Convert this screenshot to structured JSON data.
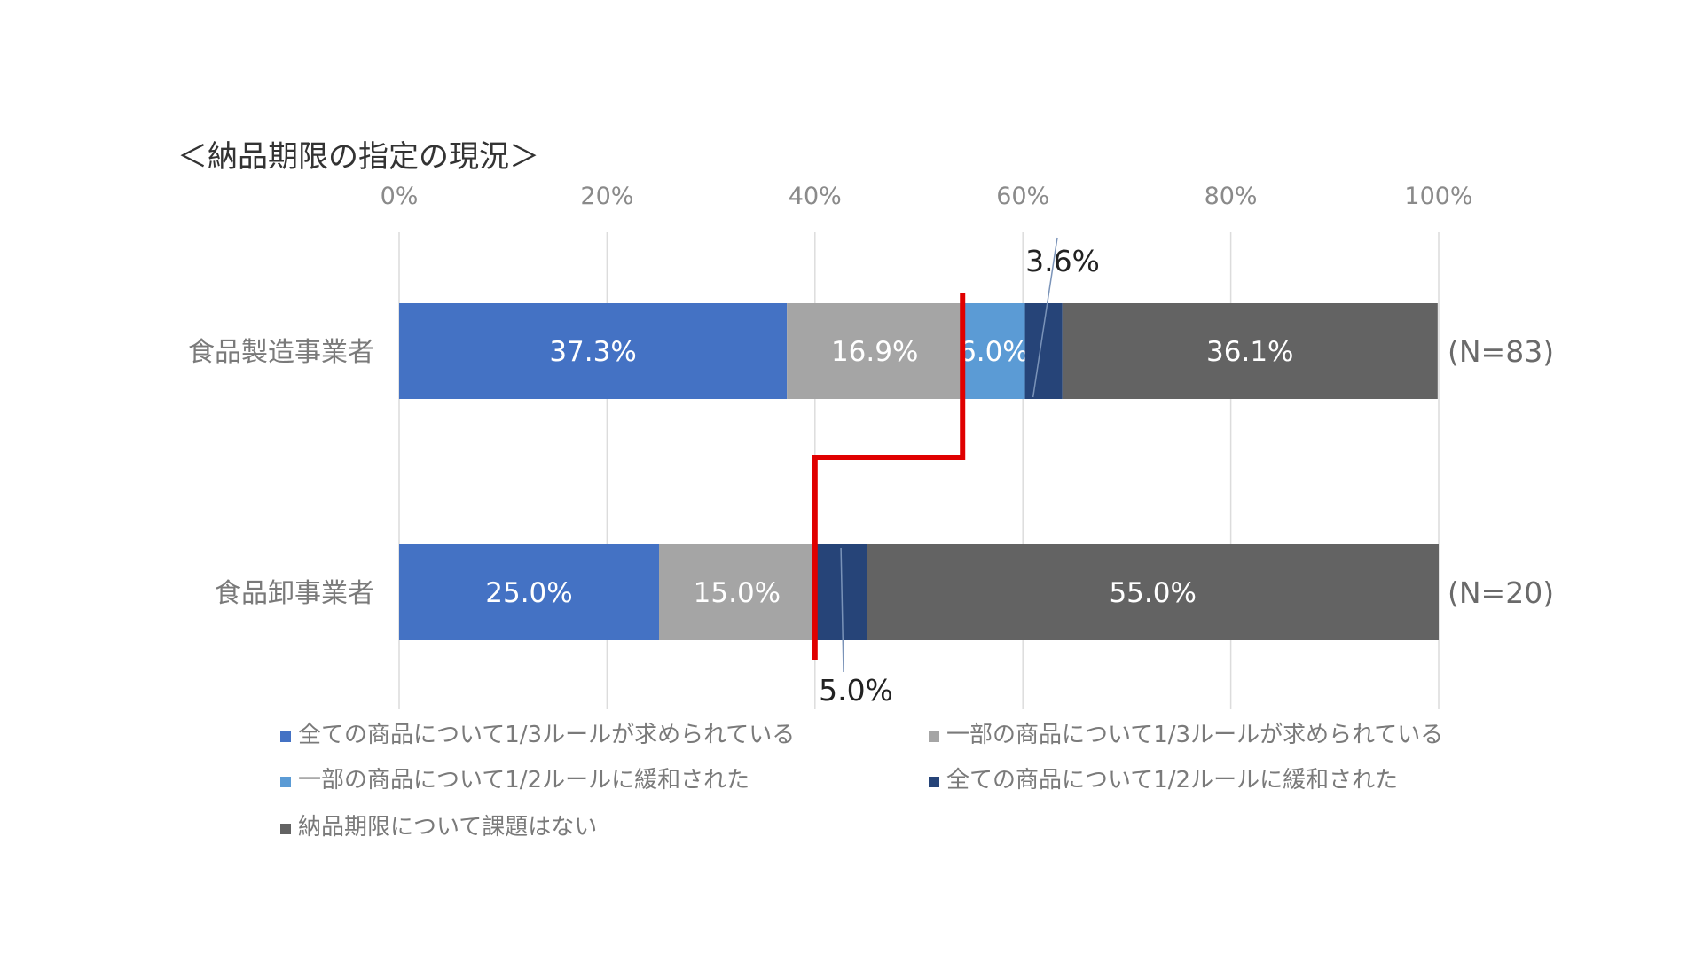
{
  "chart_data": {
    "type": "bar",
    "orientation": "horizontal",
    "stacked": true,
    "percent_stacked": true,
    "title": "＜納品期限の指定の現況＞",
    "categories": [
      "食品製造事業者",
      "食品卸事業者"
    ],
    "sample_sizes": [
      "(N=83)",
      "(N=20)"
    ],
    "x_ticks": [
      "0%",
      "20%",
      "40%",
      "60%",
      "80%",
      "100%"
    ],
    "xlim": [
      0,
      100
    ],
    "grid": true,
    "legend_position": "bottom",
    "series": [
      {
        "name": "全ての商品について1/3ルールが求められている",
        "color": "#4472C4",
        "values": [
          37.3,
          25.0
        ],
        "labels": [
          "37.3%",
          "25.0%"
        ]
      },
      {
        "name": "一部の商品について1/3ルールが求められている",
        "color": "#A5A5A5",
        "values": [
          16.9,
          15.0
        ],
        "labels": [
          "16.9%",
          "15.0%"
        ]
      },
      {
        "name": "一部の商品について1/2ルールに緩和された",
        "color": "#5B9BD5",
        "values": [
          6.0,
          0.0
        ],
        "labels": [
          "6.0%",
          ""
        ]
      },
      {
        "name": "全ての商品について1/2ルールに緩和された",
        "color": "#264478",
        "values": [
          3.6,
          5.0
        ],
        "labels": [
          "",
          ""
        ]
      },
      {
        "name": "納品期限について課題はない",
        "color": "#636363",
        "values": [
          36.1,
          55.0
        ],
        "labels": [
          "36.1%",
          "55.0%"
        ]
      }
    ],
    "annotations": [
      {
        "text": "3.6%",
        "category_index": 0,
        "series_index": 3
      },
      {
        "text": "5.0%",
        "category_index": 1,
        "series_index": 3
      }
    ],
    "highlight_line_color": "#E00000"
  }
}
